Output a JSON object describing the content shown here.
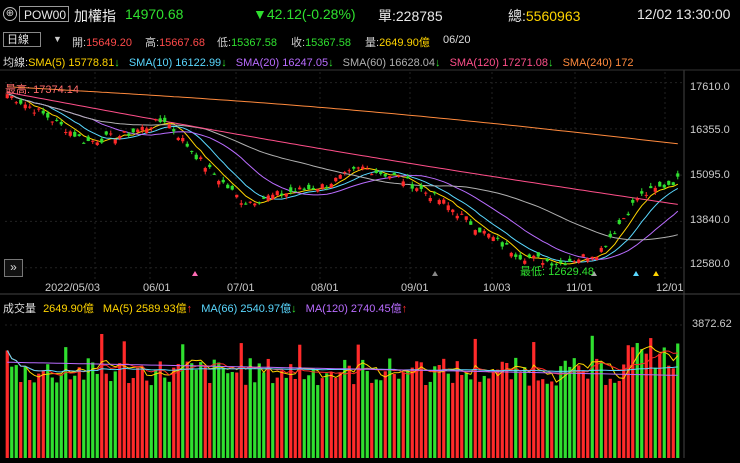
{
  "header": {
    "symbol": "POW00",
    "name": "加權指",
    "price": "14970.68",
    "change": "▼42.12(-0.28%)",
    "volume_label": "單:",
    "volume_value": "228785",
    "total_label": "總:",
    "total_value": "5560963",
    "datetime": "12/02 13:30:00"
  },
  "info": {
    "period": "日線",
    "open_label": "開:",
    "open": "15649.20",
    "high_label": "高:",
    "high": "15667.68",
    "low_label": "低:",
    "low": "15367.58",
    "close_label": "收:",
    "close": "15367.58",
    "amount_label": "量:",
    "amount": "2649.90億",
    "date": "06/20"
  },
  "price_legend": {
    "title": "均線:",
    "items": [
      {
        "text": "SMA(5) 15778.81",
        "arrow": "↓",
        "color": "#ffd400"
      },
      {
        "text": "SMA(10) 16122.99",
        "arrow": "↓",
        "color": "#5ad8ff"
      },
      {
        "text": "SMA(20) 16247.05",
        "arrow": "↓",
        "color": "#b96cff"
      },
      {
        "text": "SMA(60) 16628.04",
        "arrow": "↓",
        "color": "#b0b0b0"
      },
      {
        "text": "SMA(120) 17271.08",
        "arrow": "↓",
        "color": "#ff4f8a"
      },
      {
        "text": "SMA(240) 172",
        "arrow": "",
        "color": "#ff8a3d"
      }
    ]
  },
  "price_axis": [
    "17610.0",
    "16355.0",
    "15095.0",
    "13840.0",
    "12580.0"
  ],
  "date_axis": [
    "2022/05/03",
    "06/01",
    "07/01",
    "08/01",
    "09/01",
    "10/03",
    "11/01",
    "12/01"
  ],
  "annotations": {
    "high": "最高: 17374.14",
    "low": "最低: 12629.48"
  },
  "volume_legend": {
    "title": "成交量",
    "items": [
      {
        "text": "2649.90億",
        "arrow": "",
        "color": "#ffd400"
      },
      {
        "text": "MA(5) 2589.93億",
        "arrow": "↑",
        "color": "#ffd400"
      },
      {
        "text": "MA(66) 2540.97億",
        "arrow": "↓",
        "color": "#5ad8ff"
      },
      {
        "text": "MA(120) 2740.45億",
        "arrow": "↑",
        "color": "#b96cff"
      }
    ]
  },
  "volume_axis": "3872.62",
  "colors": {
    "up": "#ff2a2a",
    "down": "#2fe02f",
    "price_green": "#2fe02f",
    "label_orange": "#ffa040"
  },
  "icons": {
    "menu": "settings-circle-icon",
    "scroll": "double-chevron-right-icon"
  },
  "chart_data": {
    "type": "candlestick",
    "x_dates": [
      "2022/05/03",
      "06/01",
      "07/01",
      "08/01",
      "09/01",
      "10/03",
      "11/01",
      "12/01"
    ],
    "price_anchors": [
      {
        "date": "2022/05/03",
        "close": 17300
      },
      {
        "date": "05/15",
        "close": 16700
      },
      {
        "date": "05/25",
        "close": 16000
      },
      {
        "date": "06/01",
        "close": 16200
      },
      {
        "date": "06/08",
        "close": 16600
      },
      {
        "date": "06/20",
        "close": 15367.58
      },
      {
        "date": "07/01",
        "close": 14343
      },
      {
        "date": "07/15",
        "close": 14600
      },
      {
        "date": "08/01",
        "close": 14800
      },
      {
        "date": "08/15",
        "close": 15300
      },
      {
        "date": "09/01",
        "close": 15000
      },
      {
        "date": "09/15",
        "close": 14400
      },
      {
        "date": "10/03",
        "close": 13600
      },
      {
        "date": "10/20",
        "close": 12900
      },
      {
        "date": "10/25",
        "close": 12700
      },
      {
        "date": "11/01",
        "close": 13000
      },
      {
        "date": "11/15",
        "close": 14500
      },
      {
        "date": "12/02",
        "close": 14970.68
      }
    ],
    "high": 17374.14,
    "low": 12629.48,
    "ylim": [
      12300,
      17900
    ]
  }
}
